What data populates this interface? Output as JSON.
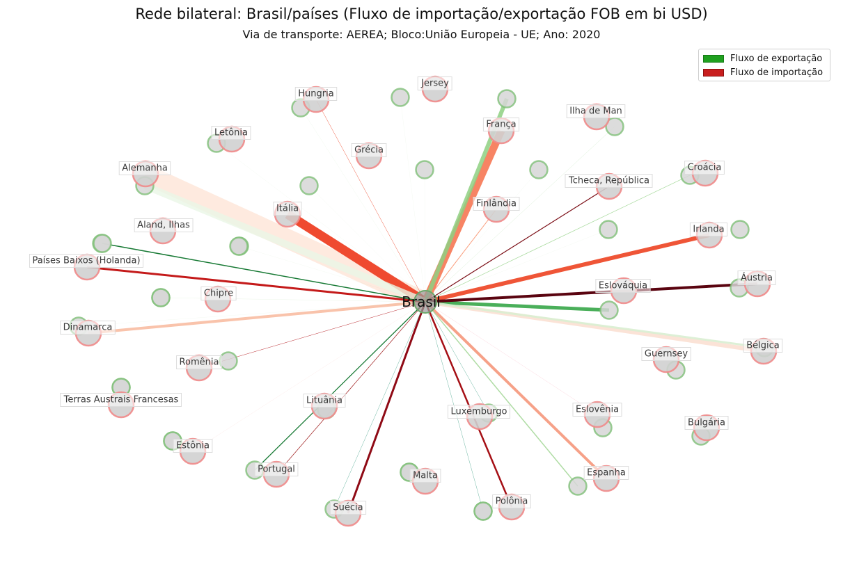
{
  "title": "Rede bilateral: Brasil/países (Fluxo de importação/exportação FOB em bi USD)",
  "subtitle": "Via de transporte: AEREA; Bloco:União Europeia - UE; Ano: 2020",
  "legend": {
    "export": {
      "label": "Fluxo de exportação",
      "color": "#1fa01f"
    },
    "import": {
      "label": "Fluxo de importação",
      "color": "#c81e1e"
    }
  },
  "hub": {
    "label": "Brasil"
  },
  "countries": [
    {
      "label": "Hungria",
      "imp_w": 0.5,
      "imp_color": "#ee4a2e",
      "imp_op": 0.9,
      "exp_w": 0.2,
      "exp_color": "#a6d89a",
      "exp_op": 0.4
    },
    {
      "label": "Jersey",
      "imp_w": 0,
      "imp_color": "#ee4a2e",
      "imp_op": 0,
      "exp_w": 0,
      "exp_color": "#a6d89a",
      "exp_op": 0
    },
    {
      "label": "França",
      "imp_w": 11,
      "imp_color": "#f77d5c",
      "imp_op": 0.95,
      "exp_w": 6,
      "exp_color": "#8ed081",
      "exp_op": 0.85
    },
    {
      "label": "Ilha de Man",
      "imp_w": 0,
      "imp_color": "#ee4a2e",
      "imp_op": 0,
      "exp_w": 0.4,
      "exp_color": "#a6d89a",
      "exp_op": 0.5
    },
    {
      "label": "Letônia",
      "imp_w": 0,
      "imp_color": "#ee4a2e",
      "imp_op": 0,
      "exp_w": 0.2,
      "exp_color": "#a6d89a",
      "exp_op": 0.3
    },
    {
      "label": "Grécia",
      "imp_w": 0,
      "imp_color": "#ee4a2e",
      "imp_op": 0,
      "exp_w": 0.2,
      "exp_color": "#a6d89a",
      "exp_op": 0.3
    },
    {
      "label": "Alemanha",
      "imp_w": 28,
      "imp_color": "#fee8dc",
      "imp_op": 0.9,
      "exp_w": 10,
      "exp_color": "#eaf6e6",
      "exp_op": 0.8
    },
    {
      "label": "Croácia",
      "imp_w": 0,
      "imp_color": "#ee4a2e",
      "imp_op": 0,
      "exp_w": 0.7,
      "exp_color": "#8ed081",
      "exp_op": 0.8
    },
    {
      "label": "Tcheca, República",
      "imp_w": 1.2,
      "imp_color": "#7a0c14",
      "imp_op": 1,
      "exp_w": 0,
      "exp_color": "#a6d89a",
      "exp_op": 0
    },
    {
      "label": "Itália",
      "imp_w": 13,
      "imp_color": "#ef4a30",
      "imp_op": 1,
      "exp_w": 0.2,
      "exp_color": "#a6d89a",
      "exp_op": 0.3
    },
    {
      "label": "Finlândia",
      "imp_w": 1,
      "imp_color": "#f8916c",
      "imp_op": 0.9,
      "exp_w": 0,
      "exp_color": "#a6d89a",
      "exp_op": 0
    },
    {
      "label": "Aland, Ilhas",
      "imp_w": 0,
      "imp_color": "#ee4a2e",
      "imp_op": 0,
      "exp_w": 0.2,
      "exp_color": "#a6d89a",
      "exp_op": 0.3
    },
    {
      "label": "Irlanda",
      "imp_w": 6,
      "imp_color": "#ef5537",
      "imp_op": 1,
      "exp_w": 0,
      "exp_color": "#a6d89a",
      "exp_op": 0
    },
    {
      "label": "Países Baixos (Holanda)",
      "imp_w": 3,
      "imp_color": "#c41a1a",
      "imp_op": 1,
      "exp_w": 1.5,
      "exp_color": "#187a35",
      "exp_op": 1
    },
    {
      "label": "Áustria",
      "imp_w": 4,
      "imp_color": "#5a0410",
      "imp_op": 1,
      "exp_w": 0,
      "exp_color": "#a6d89a",
      "exp_op": 0
    },
    {
      "label": "Eslováquia",
      "imp_w": 0,
      "imp_color": "#ee4a2e",
      "imp_op": 0,
      "exp_w": 5,
      "exp_color": "#4aaf5a",
      "exp_op": 1
    },
    {
      "label": "Chipre",
      "imp_w": 0,
      "imp_color": "#ee4a2e",
      "imp_op": 0,
      "exp_w": 0.2,
      "exp_color": "#a6d89a",
      "exp_op": 0.3
    },
    {
      "label": "Dinamarca",
      "imp_w": 4,
      "imp_color": "#f9c3ab",
      "imp_op": 1,
      "exp_w": 0.2,
      "exp_color": "#a6d89a",
      "exp_op": 0.3
    },
    {
      "label": "Bélgica",
      "imp_w": 6,
      "imp_color": "#fbe0d3",
      "imp_op": 0.9,
      "exp_w": 3,
      "exp_color": "#d9eed2",
      "exp_op": 0.9
    },
    {
      "label": "Guernsey",
      "imp_w": 0,
      "imp_color": "#ee4a2e",
      "imp_op": 0,
      "exp_w": 0,
      "exp_color": "#a6d89a",
      "exp_op": 0
    },
    {
      "label": "Romênia",
      "imp_w": 0.5,
      "imp_color": "#b3141a",
      "imp_op": 0.9,
      "exp_w": 0,
      "exp_color": "#a6d89a",
      "exp_op": 0
    },
    {
      "label": "Terras Austrais Francesas",
      "imp_w": 0,
      "imp_color": "#ee4a2e",
      "imp_op": 0,
      "exp_w": 0,
      "exp_color": "#a6d89a",
      "exp_op": 0
    },
    {
      "label": "Lituânia",
      "imp_w": 0,
      "imp_color": "#ee4a2e",
      "imp_op": 0,
      "exp_w": 0,
      "exp_color": "#a6d89a",
      "exp_op": 0
    },
    {
      "label": "Luxemburgo",
      "imp_w": 0,
      "imp_color": "#ee4a2e",
      "imp_op": 0,
      "exp_w": 0.5,
      "exp_color": "#45a38a",
      "exp_op": 0.8
    },
    {
      "label": "Eslovênia",
      "imp_w": 0.3,
      "imp_color": "#f6a4b4",
      "imp_op": 0.7,
      "exp_w": 0,
      "exp_color": "#a6d89a",
      "exp_op": 0
    },
    {
      "label": "Bulgária",
      "imp_w": 0,
      "imp_color": "#ee4a2e",
      "imp_op": 0,
      "exp_w": 0,
      "exp_color": "#a6d89a",
      "exp_op": 0
    },
    {
      "label": "Estônia",
      "imp_w": 0.2,
      "imp_color": "#f8b4a8",
      "imp_op": 0.6,
      "exp_w": 0,
      "exp_color": "#a6d89a",
      "exp_op": 0
    },
    {
      "label": "Portugal",
      "imp_w": 0.7,
      "imp_color": "#9c1717",
      "imp_op": 1,
      "exp_w": 1.3,
      "exp_color": "#187a35",
      "exp_op": 1
    },
    {
      "label": "Malta",
      "imp_w": 0,
      "imp_color": "#ee4a2e",
      "imp_op": 0,
      "exp_w": 0,
      "exp_color": "#a6d89a",
      "exp_op": 0
    },
    {
      "label": "Espanha",
      "imp_w": 4,
      "imp_color": "#f6a188",
      "imp_op": 1,
      "exp_w": 1.5,
      "exp_color": "#a6d89a",
      "exp_op": 0.9
    },
    {
      "label": "Suécia",
      "imp_w": 3,
      "imp_color": "#8f0a15",
      "imp_op": 1,
      "exp_w": 0.5,
      "exp_color": "#45a38a",
      "exp_op": 0.8
    },
    {
      "label": "Polônia",
      "imp_w": 2.5,
      "imp_color": "#a50f15",
      "imp_op": 1,
      "exp_w": 0.5,
      "exp_color": "#45a38a",
      "exp_op": 0.8
    }
  ],
  "unlabeled_exports": [
    {
      "exp_w": 0.2,
      "exp_color": "#a6d89a",
      "exp_op": 0.3
    },
    {
      "exp_w": 0.2,
      "exp_color": "#a6d89a",
      "exp_op": 0.3
    },
    {
      "exp_w": 0.2,
      "exp_color": "#a6d89a",
      "exp_op": 0.3
    },
    {
      "exp_w": 0.2,
      "exp_color": "#a6d89a",
      "exp_op": 0.3
    },
    {
      "exp_w": 0.2,
      "exp_color": "#a6d89a",
      "exp_op": 0.3
    },
    {
      "exp_w": 0,
      "exp_color": "#a6d89a",
      "exp_op": 0
    },
    {
      "exp_w": 0,
      "exp_color": "#a6d89a",
      "exp_op": 0
    },
    {
      "exp_w": 0.2,
      "exp_color": "#a6d89a",
      "exp_op": 0.3
    },
    {
      "exp_w": 0,
      "exp_color": "#a6d89a",
      "exp_op": 0
    },
    {
      "exp_w": 0,
      "exp_color": "#a6d89a",
      "exp_op": 0
    },
    {
      "exp_w": 0,
      "exp_color": "#a6d89a",
      "exp_op": 0
    },
    {
      "exp_w": 0,
      "exp_color": "#a6d89a",
      "exp_op": 0
    }
  ]
}
